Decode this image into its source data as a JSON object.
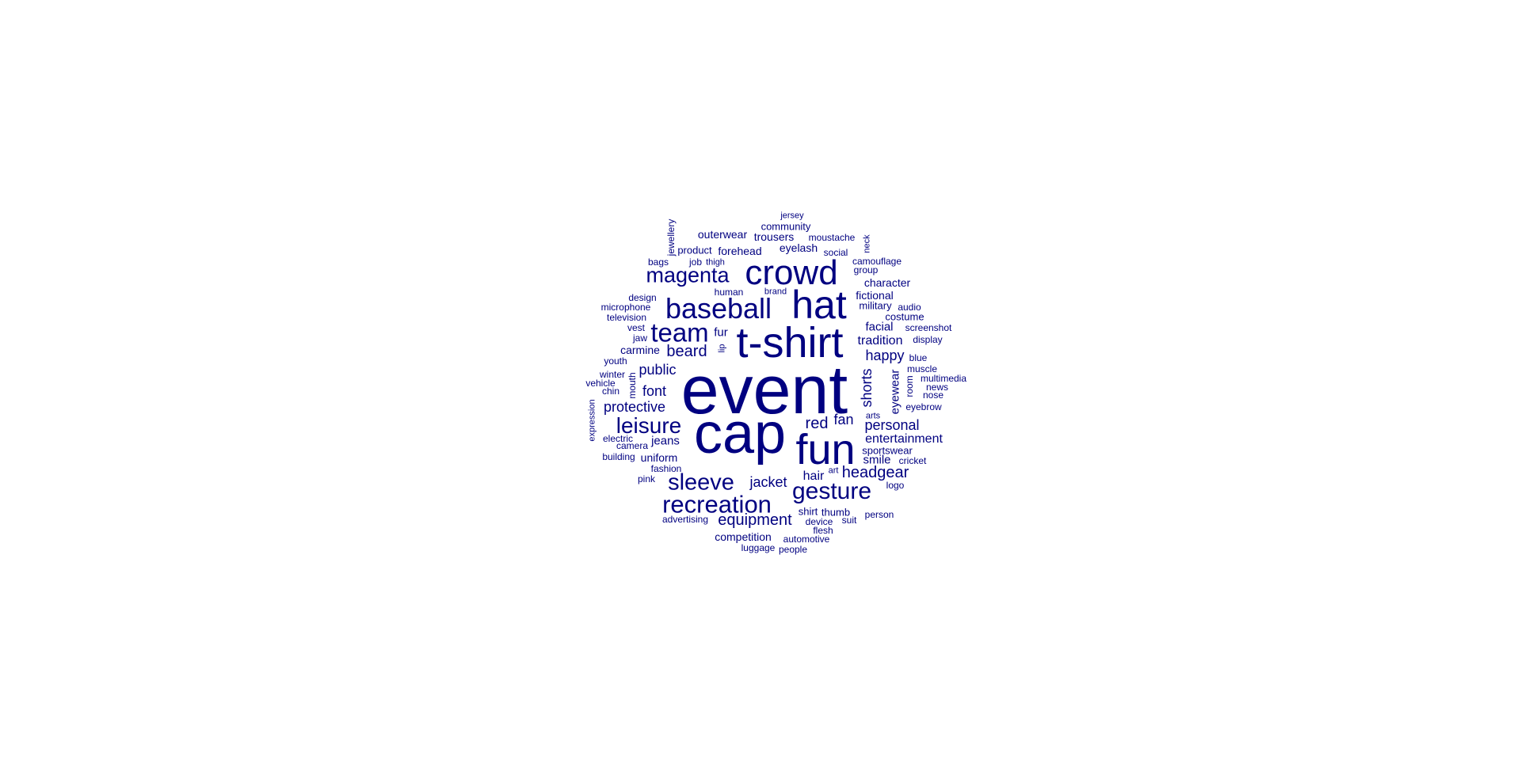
{
  "color": "#000080",
  "words": [
    {
      "text": "event",
      "weight": 100
    },
    {
      "text": "cap",
      "weight": 88
    },
    {
      "text": "t-shirt",
      "weight": 62
    },
    {
      "text": "fun",
      "weight": 62
    },
    {
      "text": "hat",
      "weight": 60
    },
    {
      "text": "crowd",
      "weight": 54
    },
    {
      "text": "baseball",
      "weight": 45
    },
    {
      "text": "team",
      "weight": 40
    },
    {
      "text": "recreation",
      "weight": 38
    },
    {
      "text": "gesture",
      "weight": 36
    },
    {
      "text": "sleeve",
      "weight": 35
    },
    {
      "text": "magenta",
      "weight": 34
    },
    {
      "text": "leisure",
      "weight": 33
    },
    {
      "text": "equipment",
      "weight": 24
    },
    {
      "text": "headgear",
      "weight": 24
    },
    {
      "text": "beard",
      "weight": 24
    },
    {
      "text": "protective",
      "weight": 22
    },
    {
      "text": "red",
      "weight": 24
    },
    {
      "text": "public",
      "weight": 21
    },
    {
      "text": "personal",
      "weight": 21
    },
    {
      "text": "font",
      "weight": 20
    },
    {
      "text": "fan",
      "weight": 20
    },
    {
      "text": "jacket",
      "weight": 20
    },
    {
      "text": "happy",
      "weight": 20
    },
    {
      "text": "shorts",
      "weight": 20
    },
    {
      "text": "tradition",
      "weight": 18
    },
    {
      "text": "entertainment",
      "weight": 18
    },
    {
      "text": "hair",
      "weight": 18
    },
    {
      "text": "jeans",
      "weight": 16
    },
    {
      "text": "competition",
      "weight": 16
    },
    {
      "text": "facial",
      "weight": 16
    },
    {
      "text": "smile",
      "weight": 16
    },
    {
      "text": "outerwear",
      "weight": 15
    },
    {
      "text": "trousers",
      "weight": 15
    },
    {
      "text": "forehead",
      "weight": 15
    },
    {
      "text": "eyelash",
      "weight": 15
    },
    {
      "text": "carmine",
      "weight": 15
    },
    {
      "text": "fur",
      "weight": 15
    },
    {
      "text": "uniform",
      "weight": 15
    },
    {
      "text": "eyewear",
      "weight": 15
    },
    {
      "text": "character",
      "weight": 15
    },
    {
      "text": "fictional",
      "weight": 15
    },
    {
      "text": "community",
      "weight": 14
    },
    {
      "text": "product",
      "weight": 14
    },
    {
      "text": "military",
      "weight": 14
    },
    {
      "text": "costume",
      "weight": 14
    },
    {
      "text": "sportswear",
      "weight": 14
    },
    {
      "text": "shirt",
      "weight": 14
    },
    {
      "text": "thumb",
      "weight": 14
    },
    {
      "text": "automotive",
      "weight": 13
    },
    {
      "text": "device",
      "weight": 13
    },
    {
      "text": "moustache",
      "weight": 13
    },
    {
      "text": "camouflage",
      "weight": 13
    },
    {
      "text": "social",
      "weight": 13
    },
    {
      "text": "human",
      "weight": 13
    },
    {
      "text": "microphone",
      "weight": 13
    },
    {
      "text": "television",
      "weight": 13
    },
    {
      "text": "design",
      "weight": 13
    },
    {
      "text": "jewellery",
      "weight": 12
    },
    {
      "text": "neck",
      "weight": 12
    },
    {
      "text": "job",
      "weight": 13
    },
    {
      "text": "bags",
      "weight": 13
    },
    {
      "text": "group",
      "weight": 13
    },
    {
      "text": "vest",
      "weight": 13
    },
    {
      "text": "jaw",
      "weight": 13
    },
    {
      "text": "youth",
      "weight": 13
    },
    {
      "text": "winter",
      "weight": 13
    },
    {
      "text": "vehicle",
      "weight": 13
    },
    {
      "text": "chin",
      "weight": 13
    },
    {
      "text": "mouth",
      "weight": 13
    },
    {
      "text": "electric",
      "weight": 13
    },
    {
      "text": "camera",
      "weight": 13
    },
    {
      "text": "building",
      "weight": 13
    },
    {
      "text": "fashion",
      "weight": 13
    },
    {
      "text": "pink",
      "weight": 13
    },
    {
      "text": "advertising",
      "weight": 13
    },
    {
      "text": "luggage",
      "weight": 13
    },
    {
      "text": "people",
      "weight": 13
    },
    {
      "text": "flesh",
      "weight": 13
    },
    {
      "text": "suit",
      "weight": 13
    },
    {
      "text": "person",
      "weight": 13
    },
    {
      "text": "logo",
      "weight": 13
    },
    {
      "text": "cricket",
      "weight": 13
    },
    {
      "text": "arts",
      "weight": 12
    },
    {
      "text": "art",
      "weight": 12
    },
    {
      "text": "eyebrow",
      "weight": 13
    },
    {
      "text": "nose",
      "weight": 13
    },
    {
      "text": "news",
      "weight": 13
    },
    {
      "text": "multimedia",
      "weight": 13
    },
    {
      "text": "room",
      "weight": 13
    },
    {
      "text": "muscle",
      "weight": 13
    },
    {
      "text": "blue",
      "weight": 13
    },
    {
      "text": "display",
      "weight": 13
    },
    {
      "text": "screenshot",
      "weight": 13
    },
    {
      "text": "audio",
      "weight": 13
    },
    {
      "text": "expression",
      "weight": 12
    },
    {
      "text": "jersey",
      "weight": 12
    },
    {
      "text": "thigh",
      "weight": 12
    },
    {
      "text": "brand",
      "weight": 12
    },
    {
      "text": "lip",
      "weight": 12
    }
  ]
}
